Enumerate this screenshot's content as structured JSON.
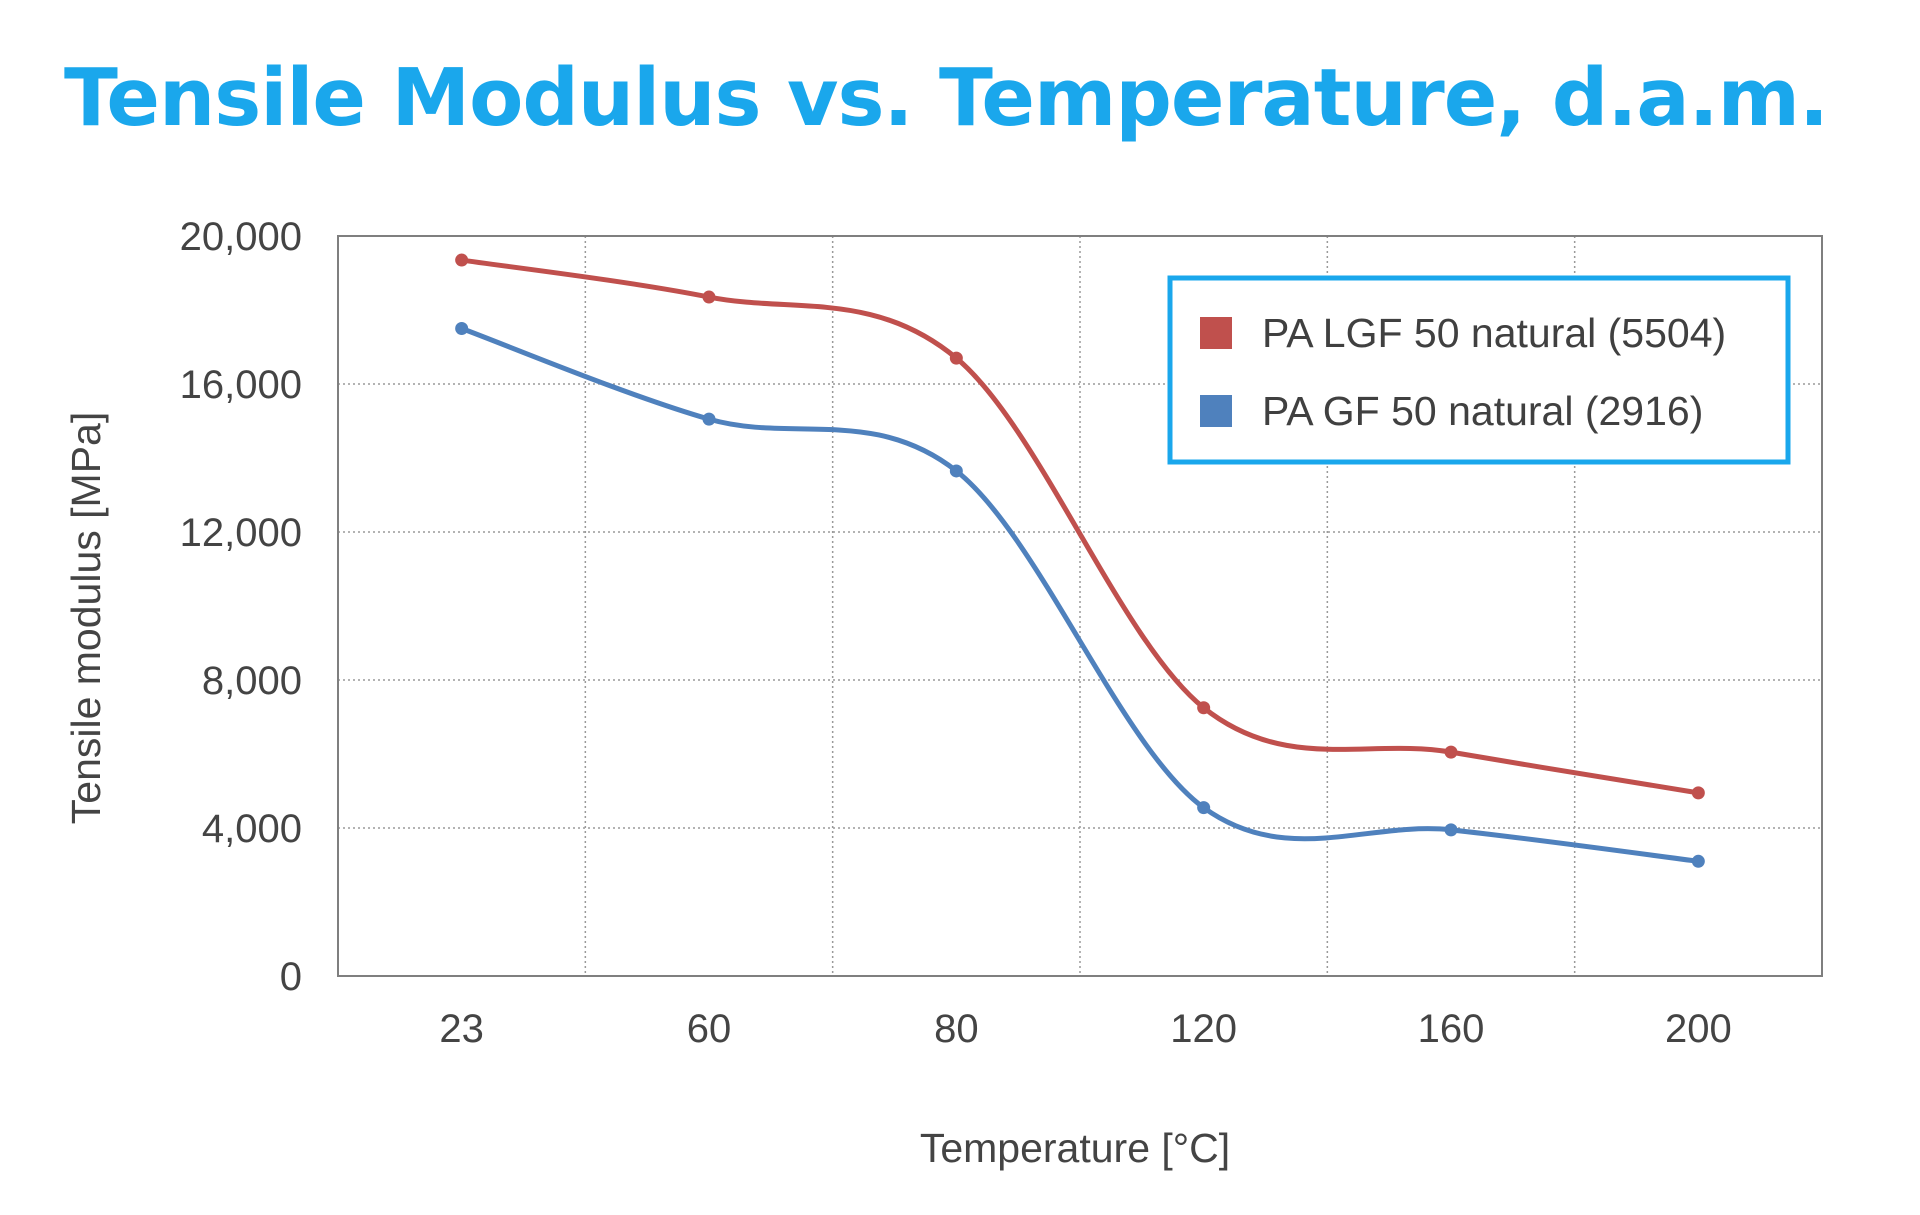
{
  "page": {
    "title": "Tensile Modulus vs. Temperature, d.a.m.",
    "title_color": "#1AA7EC"
  },
  "chart_data": {
    "type": "line",
    "title": "Tensile Modulus vs. Temperature, d.a.m.",
    "xlabel": "Temperature [°C]",
    "ylabel": "Tensile modulus [MPa]",
    "categories": [
      "23",
      "60",
      "80",
      "120",
      "160",
      "200"
    ],
    "ylim": [
      0,
      20000
    ],
    "yticks": [
      0,
      4000,
      8000,
      12000,
      16000,
      20000
    ],
    "ytick_labels": [
      "0",
      "4,000",
      "8,000",
      "12,000",
      "16,000",
      "20,000"
    ],
    "grid": true,
    "smooth": true,
    "legend": {
      "placement": "top-right",
      "border_color": "#1AA7EC"
    },
    "series": [
      {
        "name": "PA LGF 50 natural (5504)",
        "color": "#C0504D",
        "values": [
          19350,
          18350,
          16700,
          7250,
          6050,
          4950
        ]
      },
      {
        "name": "PA GF 50 natural (2916)",
        "color": "#4F81BD",
        "values": [
          17500,
          15050,
          13650,
          4550,
          3950,
          3100
        ]
      }
    ]
  }
}
